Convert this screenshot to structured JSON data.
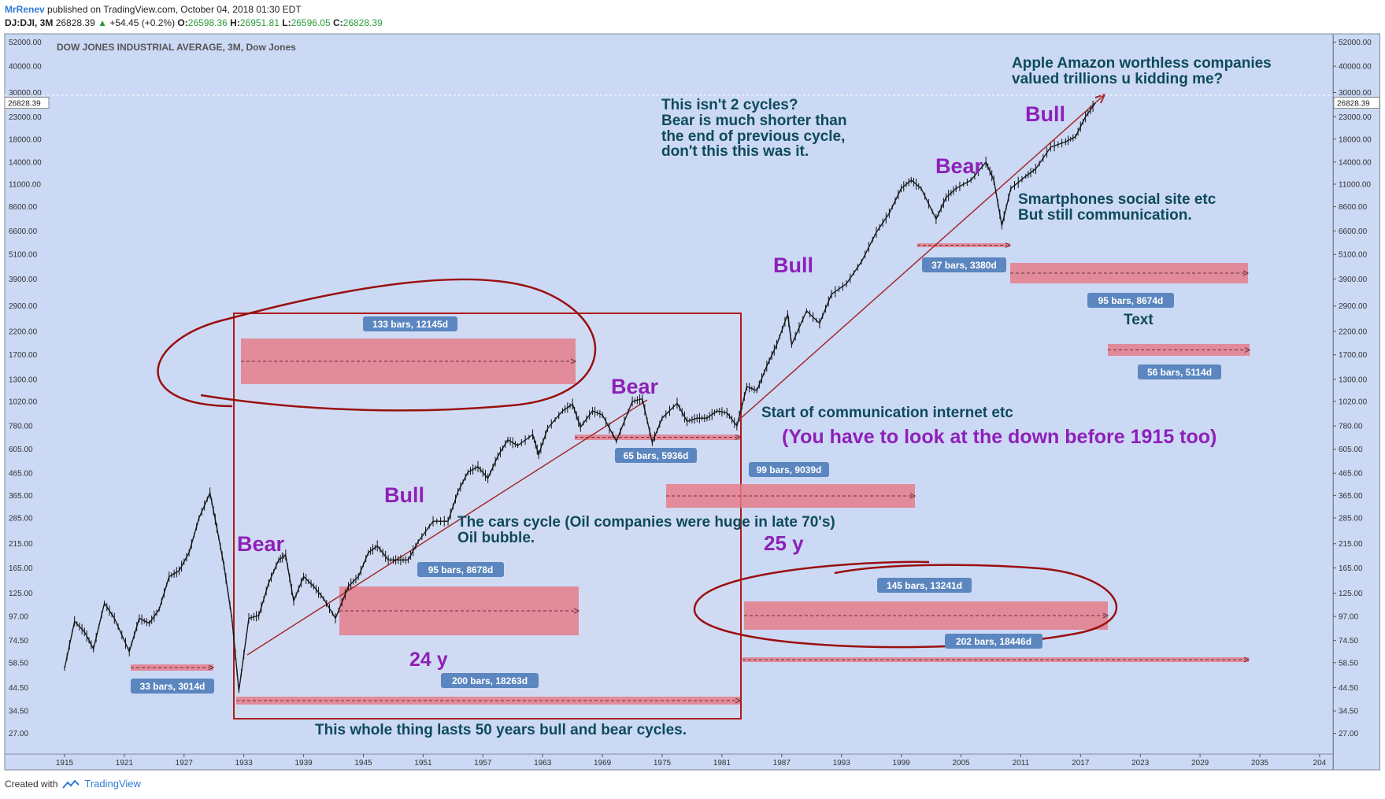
{
  "header": {
    "author": "MrRenev",
    "published": "published on TradingView.com, October 04, 2018 01:30 EDT",
    "symbol": "DJ:DJI, 3M",
    "last": "26828.39",
    "change": "+54.45 (+0.2%)",
    "o_label": "O:",
    "o_value": "26598.36",
    "h_label": "H:",
    "h_value": "26951.81",
    "l_label": "L:",
    "l_value": "26596.05",
    "c_label": "C:",
    "c_value": "26828.39"
  },
  "footer": {
    "created": "Created with",
    "brand": "TradingView"
  },
  "colors": {
    "plot_bg": "#cbd9f5",
    "range_fill": "#e57c8a",
    "red_line": "#b01a1a",
    "purple_text": "#8e20b8",
    "teal_text": "#0e4a5c",
    "badge": "#5b86bf"
  },
  "chart_data": {
    "type": "line",
    "title": "DOW JONES INDUSTRIAL AVERAGE, 3M, Dow Jones",
    "xlabel": "",
    "ylabel": "",
    "scale": "log",
    "x_ticks": [
      "1915",
      "1921",
      "1927",
      "1933",
      "1939",
      "1945",
      "1951",
      "1957",
      "1963",
      "1969",
      "1975",
      "1981",
      "1987",
      "1993",
      "1999",
      "2005",
      "2011",
      "2017",
      "2023",
      "2029",
      "2035",
      "204"
    ],
    "y_ticks": [
      "52000.00",
      "40000.00",
      "30000.00",
      "23000.00",
      "18000.00",
      "14000.00",
      "11000.00",
      "8600.00",
      "6600.00",
      "5100.00",
      "3900.00",
      "2900.00",
      "2200.00",
      "1700.00",
      "1300.00",
      "1020.00",
      "780.00",
      "605.00",
      "465.00",
      "365.00",
      "285.00",
      "215.00",
      "165.00",
      "125.00",
      "97.00",
      "74.50",
      "58.50",
      "44.50",
      "34.50",
      "27.00"
    ],
    "y_range": [
      21.5,
      57000
    ],
    "x_range": [
      1913.2,
      2040.0
    ],
    "last_price_label": "26828.39",
    "grid": false,
    "series": [
      {
        "values": [
          [
            1915.0,
            55
          ],
          [
            1916.0,
            92
          ],
          [
            1917.0,
            82
          ],
          [
            1917.9,
            68
          ],
          [
            1919.0,
            112
          ],
          [
            1920.0,
            95
          ],
          [
            1921.5,
            66
          ],
          [
            1922.5,
            95
          ],
          [
            1923.5,
            90
          ],
          [
            1924.5,
            105
          ],
          [
            1925.5,
            150
          ],
          [
            1926.5,
            160
          ],
          [
            1927.5,
            195
          ],
          [
            1928.5,
            285
          ],
          [
            1929.6,
            375
          ],
          [
            1930.3,
            255
          ],
          [
            1931.0,
            170
          ],
          [
            1931.8,
            95
          ],
          [
            1932.5,
            43
          ],
          [
            1933.5,
            95
          ],
          [
            1934.5,
            98
          ],
          [
            1935.5,
            140
          ],
          [
            1936.5,
            180
          ],
          [
            1937.2,
            190
          ],
          [
            1938.0,
            115
          ],
          [
            1939.0,
            150
          ],
          [
            1940.0,
            135
          ],
          [
            1941.0,
            118
          ],
          [
            1942.2,
            95
          ],
          [
            1943.5,
            135
          ],
          [
            1944.5,
            150
          ],
          [
            1945.5,
            195
          ],
          [
            1946.4,
            210
          ],
          [
            1947.5,
            180
          ],
          [
            1948.5,
            180
          ],
          [
            1949.5,
            180
          ],
          [
            1950.5,
            220
          ],
          [
            1952.0,
            275
          ],
          [
            1953.5,
            275
          ],
          [
            1954.5,
            380
          ],
          [
            1955.5,
            470
          ],
          [
            1956.5,
            500
          ],
          [
            1957.5,
            440
          ],
          [
            1958.5,
            560
          ],
          [
            1959.5,
            670
          ],
          [
            1960.5,
            630
          ],
          [
            1962.0,
            710
          ],
          [
            1962.6,
            570
          ],
          [
            1963.5,
            760
          ],
          [
            1965.0,
            920
          ],
          [
            1966.0,
            990
          ],
          [
            1966.8,
            770
          ],
          [
            1968.0,
            920
          ],
          [
            1969.0,
            880
          ],
          [
            1970.4,
            660
          ],
          [
            1972.0,
            1020
          ],
          [
            1973.0,
            1050
          ],
          [
            1974.0,
            650
          ],
          [
            1975.0,
            850
          ],
          [
            1976.5,
            1000
          ],
          [
            1977.5,
            820
          ],
          [
            1978.5,
            850
          ],
          [
            1979.5,
            850
          ],
          [
            1980.5,
            920
          ],
          [
            1981.5,
            900
          ],
          [
            1982.5,
            780
          ],
          [
            1983.5,
            1200
          ],
          [
            1984.5,
            1150
          ],
          [
            1985.5,
            1500
          ],
          [
            1986.5,
            1900
          ],
          [
            1987.6,
            2650
          ],
          [
            1988.0,
            1900
          ],
          [
            1989.5,
            2750
          ],
          [
            1990.8,
            2400
          ],
          [
            1992.0,
            3300
          ],
          [
            1993.5,
            3700
          ],
          [
            1995.0,
            4700
          ],
          [
            1996.5,
            6500
          ],
          [
            1997.8,
            8000
          ],
          [
            1999.0,
            10500
          ],
          [
            2000.0,
            11500
          ],
          [
            2001.0,
            10500
          ],
          [
            2002.5,
            7500
          ],
          [
            2003.5,
            9500
          ],
          [
            2004.5,
            10500
          ],
          [
            2006.0,
            11500
          ],
          [
            2007.5,
            14000
          ],
          [
            2008.3,
            11500
          ],
          [
            2009.1,
            7000
          ],
          [
            2010.0,
            10500
          ],
          [
            2011.5,
            12000
          ],
          [
            2012.5,
            13000
          ],
          [
            2014.0,
            16500
          ],
          [
            2015.5,
            17500
          ],
          [
            2016.5,
            18500
          ],
          [
            2017.5,
            23000
          ],
          [
            2018.5,
            26800
          ]
        ]
      }
    ]
  },
  "annotations": {
    "texts": [
      {
        "id": "bull-1",
        "text": "Bull",
        "kind": "purple"
      },
      {
        "id": "bear-1",
        "text": "Bear",
        "kind": "purple"
      },
      {
        "id": "bull-2",
        "text": "Bull",
        "kind": "purple"
      },
      {
        "id": "bear-2",
        "text": "Bear",
        "kind": "purple"
      },
      {
        "id": "bull-3",
        "text": "Bull",
        "kind": "purple"
      },
      {
        "id": "bear-3",
        "text": "Bear",
        "kind": "purple"
      },
      {
        "id": "bull-4",
        "text": "Bull",
        "kind": "purple"
      },
      {
        "id": "years-24",
        "text": "24 y",
        "kind": "purple"
      },
      {
        "id": "years-25",
        "text": "25 y",
        "kind": "purple"
      },
      {
        "id": "look-down",
        "text": "(You have to look at the down before 1915 too)",
        "kind": "purple"
      },
      {
        "id": "apple-1",
        "text": "Apple Amazon worthless companies",
        "kind": "teal"
      },
      {
        "id": "apple-2",
        "text": "valued trillions u kidding me?",
        "kind": "teal"
      },
      {
        "id": "cycles-1",
        "text": "This isn't 2 cycles?",
        "kind": "teal"
      },
      {
        "id": "cycles-2",
        "text": "Bear is much shorter than",
        "kind": "teal"
      },
      {
        "id": "cycles-3",
        "text": "the end of previous cycle,",
        "kind": "teal"
      },
      {
        "id": "cycles-4",
        "text": "don't this this was it.",
        "kind": "teal"
      },
      {
        "id": "smart-1",
        "text": "Smartphones social site etc",
        "kind": "teal"
      },
      {
        "id": "smart-2",
        "text": "But still communication.",
        "kind": "teal"
      },
      {
        "id": "comm",
        "text": "Start of communication internet etc",
        "kind": "teal"
      },
      {
        "id": "cars-1",
        "text": "The cars cycle (Oil companies were huge in late 70's)",
        "kind": "teal"
      },
      {
        "id": "cars-2",
        "text": "Oil bubble.",
        "kind": "teal"
      },
      {
        "id": "whole",
        "text": "This whole thing lasts 50 years bull and bear cycles.",
        "kind": "teal"
      },
      {
        "id": "text-note",
        "text": "Text",
        "kind": "teal"
      }
    ],
    "badges": [
      {
        "id": "b133",
        "text": "133 bars, 12145d"
      },
      {
        "id": "b95a",
        "text": "95 bars, 8678d"
      },
      {
        "id": "b200",
        "text": "200 bars, 18263d"
      },
      {
        "id": "b33",
        "text": "33 bars, 3014d"
      },
      {
        "id": "b65",
        "text": "65 bars, 5936d"
      },
      {
        "id": "b99",
        "text": "99 bars, 9039d"
      },
      {
        "id": "b145",
        "text": "145 bars, 13241d"
      },
      {
        "id": "b202",
        "text": "202 bars, 18446d"
      },
      {
        "id": "b37",
        "text": "37 bars, 3380d"
      },
      {
        "id": "b95b",
        "text": "95 bars, 8674d"
      },
      {
        "id": "b56",
        "text": "56 bars, 5114d"
      }
    ]
  }
}
